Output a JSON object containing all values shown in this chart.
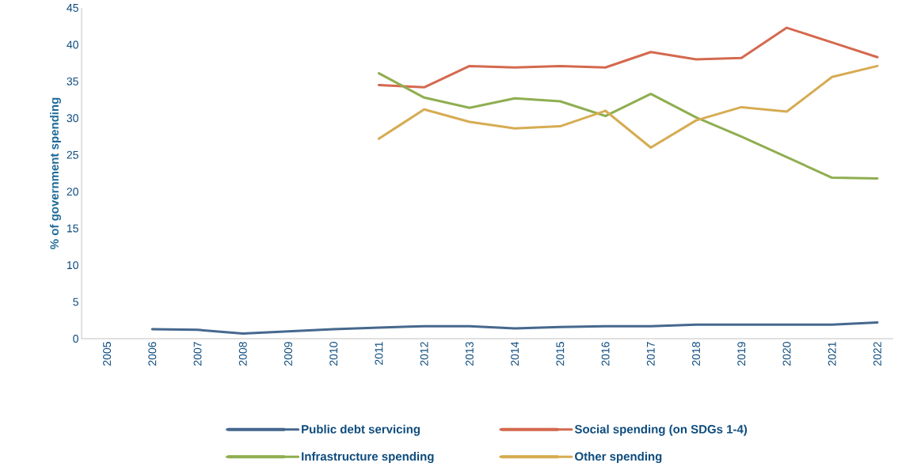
{
  "chart_data": {
    "type": "line",
    "ylabel": "% of government spending",
    "categories": [
      "2005",
      "2006",
      "2007",
      "2008",
      "2009",
      "2010",
      "2011",
      "2012",
      "2013",
      "2014",
      "2015",
      "2016",
      "2017",
      "2018",
      "2019",
      "2020",
      "2021",
      "2022"
    ],
    "ylim": [
      0,
      45
    ],
    "yticks": [
      0,
      5,
      10,
      15,
      20,
      25,
      30,
      35,
      40,
      45
    ],
    "grid": false,
    "legend": "bottom",
    "marker": "none",
    "line_style": "solid",
    "series": [
      {
        "name": "Public debt servicing",
        "color": "#46688e",
        "values": [
          null,
          1.3,
          1.2,
          0.7,
          1.0,
          1.3,
          1.5,
          1.7,
          1.7,
          1.4,
          1.6,
          1.7,
          1.7,
          1.9,
          1.9,
          1.9,
          1.9,
          2.2
        ]
      },
      {
        "name": "Social spending (on SDGs 1-4)",
        "color": "#d4694f",
        "values": [
          null,
          null,
          null,
          null,
          null,
          null,
          34.5,
          34.2,
          37.1,
          36.9,
          37.1,
          36.9,
          39.0,
          38.0,
          38.2,
          42.3,
          40.3,
          38.3
        ]
      },
      {
        "name": "Infrastructure spending",
        "color": "#8fae50",
        "values": [
          null,
          null,
          null,
          null,
          null,
          null,
          36.1,
          32.8,
          31.4,
          32.7,
          32.3,
          30.3,
          33.3,
          30.1,
          27.5,
          24.7,
          21.9,
          21.8
        ]
      },
      {
        "name": "Other spending",
        "color": "#d6ac52",
        "values": [
          null,
          null,
          null,
          null,
          null,
          null,
          27.2,
          31.2,
          29.5,
          28.6,
          28.9,
          31.0,
          26.0,
          29.7,
          31.5,
          30.9,
          35.6,
          37.1
        ]
      }
    ]
  }
}
